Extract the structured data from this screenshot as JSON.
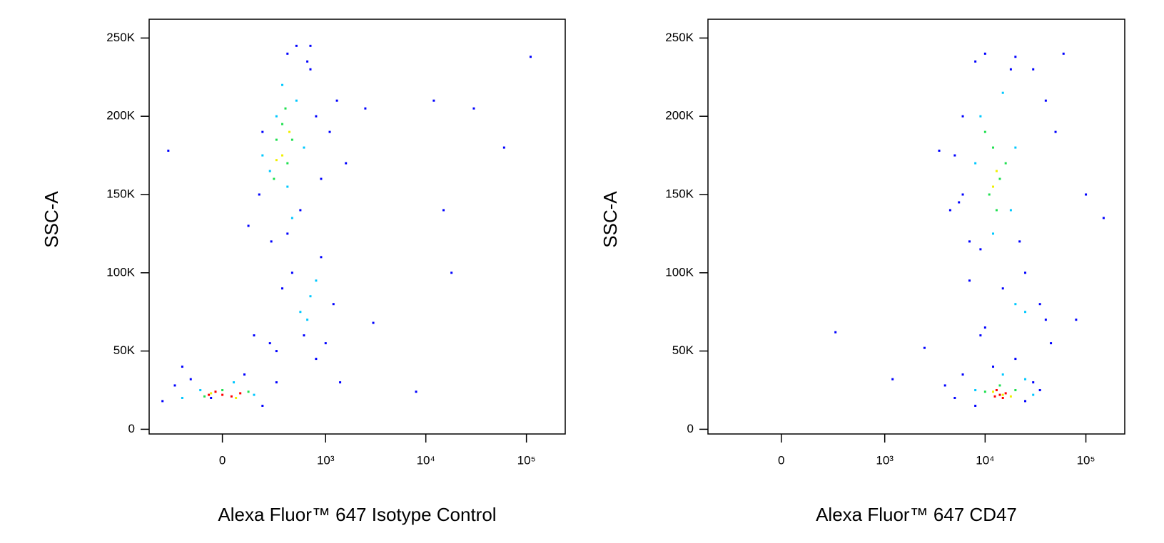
{
  "chart_data": [
    {
      "type": "scatter",
      "x_label": "Alexa Fluor™ 647 Isotype Control",
      "y_label": "SSC-A",
      "x_scale": "biexponential",
      "xlim": [
        -490,
        243000
      ],
      "ylim": [
        -3000,
        262000
      ],
      "xticks": [
        0,
        {
          "value": 1000,
          "label": "10³"
        },
        {
          "value": 10000,
          "label": "10⁴"
        },
        {
          "value": 100000,
          "label": "10⁵"
        }
      ],
      "yticks": [
        0,
        {
          "value": 50000,
          "label": "50K"
        },
        {
          "value": 100000,
          "label": "100K"
        },
        {
          "value": 150000,
          "label": "150K"
        },
        {
          "value": 200000,
          "label": "200K"
        },
        {
          "value": 250000,
          "label": "250K"
        }
      ],
      "series": [
        {
          "color": "#0000ff",
          "x": [
            -350,
            -250,
            -150,
            -50,
            100,
            200,
            300,
            -200,
            150,
            250,
            120,
            180,
            260,
            400,
            550,
            650,
            700,
            800,
            900,
            1100,
            1300,
            1600,
            400,
            500,
            700,
            900,
            300,
            350,
            600,
            800,
            200,
            3000,
            8000,
            12000,
            18000,
            30000,
            60000,
            110000,
            15000,
            2500,
            -300,
            1200,
            450,
            1400,
            1000
          ],
          "y": [
            18000,
            28000,
            32000,
            20000,
            35000,
            15000,
            30000,
            40000,
            60000,
            55000,
            130000,
            150000,
            120000,
            125000,
            140000,
            235000,
            245000,
            200000,
            160000,
            190000,
            210000,
            170000,
            240000,
            245000,
            230000,
            110000,
            50000,
            90000,
            60000,
            45000,
            190000,
            68000,
            24000,
            210000,
            100000,
            205000,
            180000,
            238000,
            140000,
            205000,
            178000,
            80000,
            100000,
            30000,
            55000
          ]
        },
        {
          "color": "#00c8ff",
          "x": [
            300,
            250,
            400,
            500,
            350,
            600,
            200,
            450,
            700,
            550,
            800,
            -100,
            150,
            -200,
            50,
            650
          ],
          "y": [
            200000,
            165000,
            155000,
            210000,
            220000,
            180000,
            175000,
            135000,
            85000,
            75000,
            95000,
            25000,
            22000,
            20000,
            30000,
            70000
          ]
        },
        {
          "color": "#20e050",
          "x": [
            300,
            400,
            350,
            450,
            280,
            380,
            0,
            -80,
            120
          ],
          "y": [
            185000,
            170000,
            195000,
            185000,
            160000,
            205000,
            25000,
            21000,
            24000
          ]
        },
        {
          "color": "#f0f000",
          "x": [
            350,
            420,
            300,
            -50,
            60
          ],
          "y": [
            175000,
            190000,
            172000,
            23000,
            20000
          ]
        },
        {
          "color": "#ff0000",
          "x": [
            0,
            -30,
            40,
            80,
            -60
          ],
          "y": [
            22000,
            24000,
            21000,
            23000,
            22000
          ]
        }
      ]
    },
    {
      "type": "scatter",
      "x_label": "Alexa Fluor™ 647 CD47",
      "y_label": "SSC-A",
      "x_scale": "biexponential",
      "xlim": [
        -490,
        243000
      ],
      "ylim": [
        -3000,
        262000
      ],
      "xticks": [
        0,
        {
          "value": 1000,
          "label": "10³"
        },
        {
          "value": 10000,
          "label": "10⁴"
        },
        {
          "value": 100000,
          "label": "10⁵"
        }
      ],
      "yticks": [
        0,
        {
          "value": 50000,
          "label": "50K"
        },
        {
          "value": 100000,
          "label": "100K"
        },
        {
          "value": 150000,
          "label": "150K"
        },
        {
          "value": 200000,
          "label": "200K"
        },
        {
          "value": 250000,
          "label": "250K"
        }
      ],
      "series": [
        {
          "color": "#0000ff",
          "x": [
            5000,
            6000,
            8000,
            25000,
            30000,
            35000,
            4000,
            20000,
            12000,
            9000,
            7000,
            6000,
            8000,
            10000,
            20000,
            30000,
            40000,
            50000,
            5000,
            4500,
            25000,
            35000,
            40000,
            15000,
            10000,
            6000,
            9000,
            22000,
            18000,
            60000,
            3500,
            2500,
            1200,
            300,
            5500,
            100000,
            150000,
            80000,
            45000,
            7000
          ],
          "y": [
            20000,
            35000,
            15000,
            18000,
            30000,
            25000,
            28000,
            45000,
            40000,
            60000,
            120000,
            150000,
            235000,
            240000,
            238000,
            230000,
            210000,
            190000,
            175000,
            140000,
            100000,
            80000,
            70000,
            90000,
            65000,
            200000,
            115000,
            120000,
            230000,
            240000,
            178000,
            52000,
            32000,
            62000,
            145000,
            150000,
            135000,
            70000,
            55000,
            95000
          ]
        },
        {
          "color": "#00c8ff",
          "x": [
            9000,
            15000,
            20000,
            8000,
            18000,
            12000,
            20000,
            25000,
            15000,
            25000,
            8000,
            30000
          ],
          "y": [
            200000,
            215000,
            180000,
            170000,
            140000,
            125000,
            80000,
            75000,
            35000,
            32000,
            25000,
            22000
          ]
        },
        {
          "color": "#20e050",
          "x": [
            12000,
            14000,
            11000,
            16000,
            10000,
            13000,
            14000,
            20000,
            10000
          ],
          "y": [
            180000,
            160000,
            150000,
            170000,
            190000,
            140000,
            28000,
            25000,
            24000
          ]
        },
        {
          "color": "#f0f000",
          "x": [
            13000,
            12000,
            15000,
            12000,
            18000
          ],
          "y": [
            165000,
            155000,
            22000,
            24000,
            21000
          ]
        },
        {
          "color": "#ff0000",
          "x": [
            14000,
            13000,
            16000,
            15000,
            12500
          ],
          "y": [
            22000,
            25000,
            23000,
            20000,
            21000
          ]
        }
      ]
    }
  ]
}
